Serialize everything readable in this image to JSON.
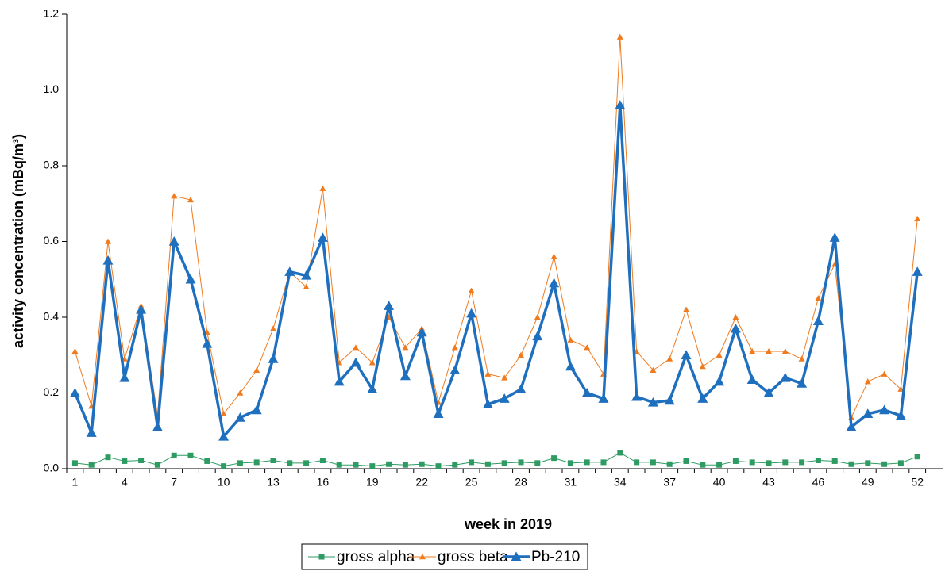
{
  "chart_data": {
    "type": "line",
    "x_label": "week in 2019",
    "y_label": "activity concentration (mBq/m³)",
    "categories": [
      "1",
      null,
      null,
      "4",
      null,
      null,
      "7",
      null,
      null,
      "10",
      null,
      null,
      "13",
      null,
      null,
      "16",
      null,
      null,
      "19",
      null,
      null,
      "22",
      null,
      null,
      "25",
      null,
      null,
      "28",
      null,
      null,
      "31",
      null,
      null,
      "34",
      null,
      null,
      "37",
      null,
      null,
      "40",
      null,
      null,
      "43",
      null,
      null,
      "46",
      null,
      null,
      "49",
      null,
      null,
      "52"
    ],
    "ylim": [
      0,
      1.2
    ],
    "yticks": [
      {
        "value": 0,
        "label": "0.0"
      },
      {
        "value": 0.2,
        "label": "0.2"
      },
      {
        "value": 0.4,
        "label": "0.4"
      },
      {
        "value": 0.6,
        "label": "0.6"
      },
      {
        "value": 0.8,
        "label": "0.8"
      },
      {
        "value": 1.0,
        "label": "1.0"
      },
      {
        "value": 1.2,
        "label": "1.2"
      }
    ],
    "grid": false,
    "legend": "bottom",
    "series": [
      {
        "name": "gross alpha",
        "color": "#2e9b63",
        "marker": "square",
        "width": 1,
        "values": [
          0.015,
          0.01,
          0.03,
          0.02,
          0.022,
          0.01,
          0.035,
          0.035,
          0.02,
          0.007,
          0.015,
          0.017,
          0.022,
          0.015,
          0.015,
          0.022,
          0.01,
          0.01,
          0.007,
          0.012,
          0.01,
          0.012,
          0.007,
          0.01,
          0.017,
          0.012,
          0.015,
          0.017,
          0.015,
          0.028,
          0.015,
          0.017,
          0.017,
          0.042,
          0.017,
          0.017,
          0.012,
          0.02,
          0.01,
          0.01,
          0.02,
          0.017,
          0.015,
          0.017,
          0.017,
          0.022,
          0.02,
          0.012,
          0.015,
          0.012,
          0.015,
          0.032
        ]
      },
      {
        "name": "gross beta",
        "color": "#f07b1f",
        "marker": "triangle",
        "width": 1,
        "values": [
          0.31,
          0.165,
          0.6,
          0.29,
          0.43,
          0.14,
          0.72,
          0.71,
          0.36,
          0.145,
          0.2,
          0.26,
          0.37,
          0.52,
          0.48,
          0.74,
          0.28,
          0.32,
          0.28,
          0.4,
          0.32,
          0.37,
          0.175,
          0.32,
          0.47,
          0.25,
          0.24,
          0.3,
          0.4,
          0.56,
          0.34,
          0.32,
          0.25,
          1.14,
          0.31,
          0.26,
          0.29,
          0.42,
          0.27,
          0.3,
          0.4,
          0.31,
          0.31,
          0.31,
          0.29,
          0.45,
          0.54,
          0.135,
          0.23,
          0.25,
          0.21,
          0.66
        ]
      },
      {
        "name": "Pb-210",
        "color": "#1f6fbf",
        "marker": "big-triangle",
        "width": 3.5,
        "values": [
          0.2,
          0.095,
          0.55,
          0.24,
          0.42,
          0.11,
          0.6,
          0.5,
          0.33,
          0.085,
          0.135,
          0.155,
          0.29,
          0.52,
          0.51,
          0.61,
          0.23,
          0.28,
          0.21,
          0.43,
          0.245,
          0.36,
          0.145,
          0.26,
          0.41,
          0.17,
          0.185,
          0.21,
          0.35,
          0.49,
          0.27,
          0.2,
          0.185,
          0.96,
          0.19,
          0.175,
          0.18,
          0.3,
          0.185,
          0.23,
          0.37,
          0.235,
          0.2,
          0.24,
          0.225,
          0.39,
          0.61,
          0.11,
          0.145,
          0.155,
          0.14,
          0.52
        ]
      }
    ]
  }
}
